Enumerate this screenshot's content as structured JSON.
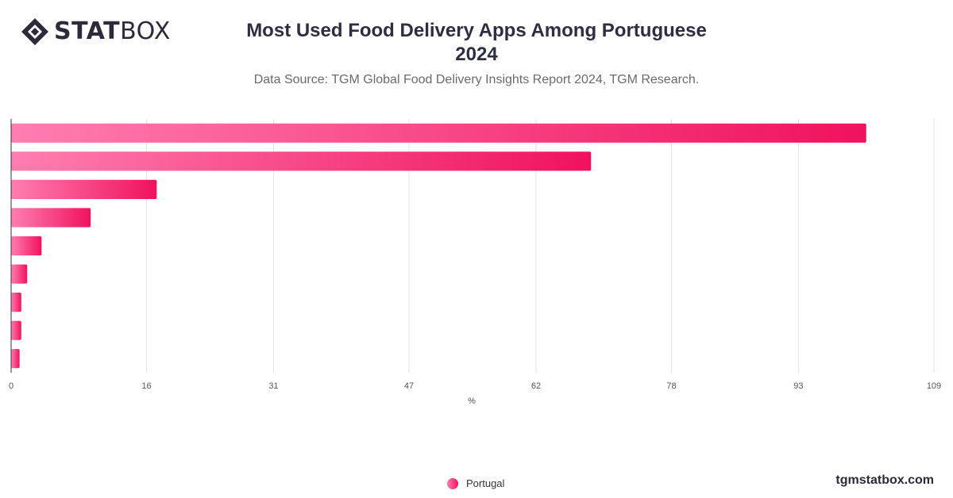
{
  "brand": {
    "logo_bold": "STAT",
    "logo_light": "BOX",
    "site": "tgmstatbox.com"
  },
  "chart_data": {
    "type": "bar",
    "orientation": "horizontal",
    "title_line1": "Most Used Food Delivery Apps Among Portuguese",
    "title_line2": "2024",
    "subtitle": "Data Source: TGM Global Food Delivery Insights Report 2024, TGM Research.",
    "xlabel": "%",
    "xlim": [
      0,
      109
    ],
    "x_ticks": [
      "0",
      "16",
      "31",
      "47",
      "62",
      "78",
      "93",
      "109"
    ],
    "grid": true,
    "legend_position": "bottom-center",
    "series": [
      {
        "name": "Portugal",
        "values": [
          101,
          68.5,
          17.2,
          9.4,
          3.6,
          1.9,
          1.2,
          1.2,
          1.0
        ]
      }
    ],
    "colors": {
      "bar_start": "#ff7eb0",
      "bar_end": "#f0125e",
      "grid": "#e3e3e3",
      "axis": "#333333"
    }
  }
}
